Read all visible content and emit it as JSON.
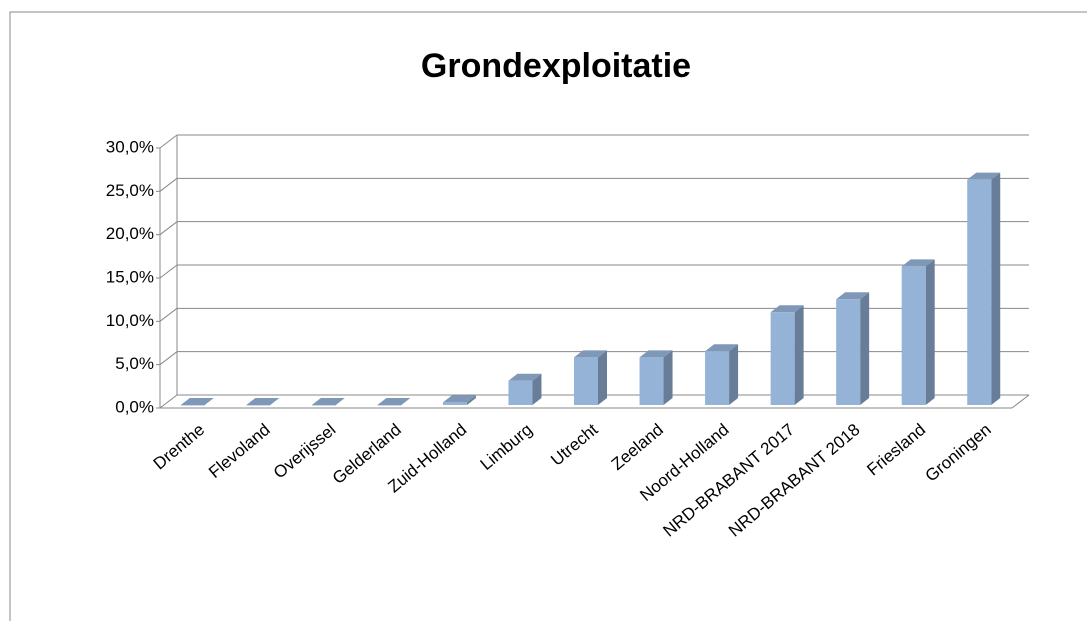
{
  "chart_data": {
    "type": "bar",
    "title": "Grondexploitatie",
    "categories": [
      "Drenthe",
      "Flevoland",
      "Overijssel",
      "Gelderland",
      "Zuid-Holland",
      "Limburg",
      "Utrecht",
      "Zeeland",
      "Noord-Holland",
      "NRD-BRABANT 2017",
      "NRD-BRABANT 2018",
      "Friesland",
      "Groningen"
    ],
    "values": [
      0,
      0,
      0,
      0,
      0.3,
      2.8,
      5.5,
      5.5,
      6.2,
      10.7,
      12.2,
      16.0,
      26.0
    ],
    "color": "#95b3d7",
    "ylim": [
      0,
      30
    ],
    "yticks": [
      {
        "value": 0,
        "label": "0,0%"
      },
      {
        "value": 5,
        "label": "5,0%"
      },
      {
        "value": 10,
        "label": "10,0%"
      },
      {
        "value": 15,
        "label": "15,0%"
      },
      {
        "value": 20,
        "label": "20,0%"
      },
      {
        "value": 25,
        "label": "25,0%"
      },
      {
        "value": 30,
        "label": "30,0%"
      }
    ],
    "grid": true
  }
}
